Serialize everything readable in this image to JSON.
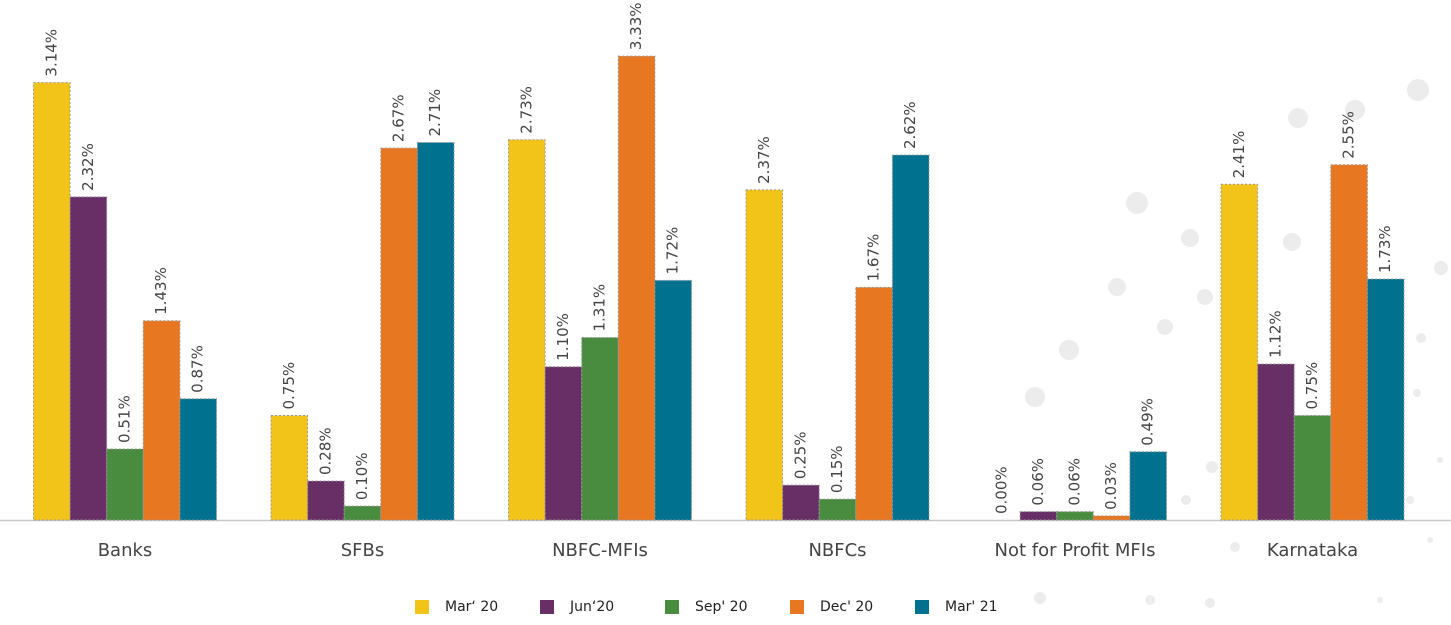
{
  "chart_data": {
    "type": "bar",
    "categories": [
      "Banks",
      "SFBs",
      "NBFC-MFIs",
      "NBFCs",
      "Not for Profit MFIs",
      "Karnataka"
    ],
    "series": [
      {
        "name": "Mar‘ 20",
        "color": "#f2c318",
        "values": [
          3.14,
          0.75,
          2.73,
          2.37,
          0.0,
          2.41
        ],
        "value_labels": [
          "3.14%",
          "0.75%",
          "2.73%",
          "2.37%",
          "0.00%",
          "2.41%"
        ]
      },
      {
        "name": "Jun‘20",
        "color": "#682f67",
        "values": [
          2.32,
          0.28,
          1.1,
          0.25,
          0.06,
          1.12
        ],
        "value_labels": [
          "2.32%",
          "0.28%",
          "1.10%",
          "0.25%",
          "0.06%",
          "1.12%"
        ]
      },
      {
        "name": "Sep' 20",
        "color": "#4a8c3f",
        "values": [
          0.51,
          0.1,
          1.31,
          0.15,
          0.06,
          0.75
        ],
        "value_labels": [
          "0.51%",
          "0.10%",
          "1.31%",
          "0.15%",
          "0.06%",
          "0.75%"
        ]
      },
      {
        "name": "Dec' 20",
        "color": "#e87722",
        "values": [
          1.43,
          2.67,
          3.33,
          1.67,
          0.03,
          2.55
        ],
        "value_labels": [
          "1.43%",
          "2.67%",
          "3.33%",
          "1.67%",
          "0.03%",
          "2.55%"
        ]
      },
      {
        "name": "Mar' 21",
        "color": "#00728f",
        "values": [
          0.87,
          2.71,
          1.72,
          2.62,
          0.49,
          1.73
        ],
        "value_labels": [
          "0.87%",
          "2.71%",
          "1.72%",
          "2.62%",
          "0.49%",
          "1.73%"
        ]
      }
    ],
    "legend": "bottom"
  }
}
